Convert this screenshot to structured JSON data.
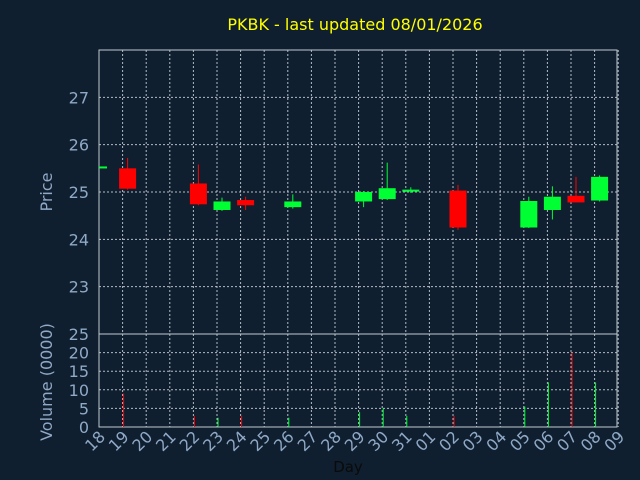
{
  "chart_data": [
    {
      "type": "candlestick",
      "title": "PKBK - last updated 08/01/2026",
      "ylabel": "Price",
      "xlabel": "",
      "ylim": [
        22,
        28
      ],
      "yticks": [
        23,
        24,
        25,
        26,
        27
      ],
      "grid": true,
      "colors": {
        "up": "#00ff33",
        "down": "#ff0000"
      },
      "candles": [
        {
          "day": "18",
          "open": 25.52,
          "high": 25.54,
          "low": 25.51,
          "close": 25.54
        },
        {
          "day": "19",
          "open": 25.5,
          "high": 25.72,
          "low": 25.05,
          "close": 25.07
        },
        {
          "day": "22",
          "open": 25.18,
          "high": 25.58,
          "low": 24.72,
          "close": 24.74
        },
        {
          "day": "23",
          "open": 24.62,
          "high": 24.88,
          "low": 24.6,
          "close": 24.8
        },
        {
          "day": "24",
          "open": 24.83,
          "high": 24.9,
          "low": 24.62,
          "close": 24.72
        },
        {
          "day": "26",
          "open": 24.68,
          "high": 24.95,
          "low": 24.65,
          "close": 24.8
        },
        {
          "day": "29",
          "open": 24.8,
          "high": 25.02,
          "low": 24.68,
          "close": 25.0
        },
        {
          "day": "30",
          "open": 24.85,
          "high": 25.62,
          "low": 24.83,
          "close": 25.08
        },
        {
          "day": "31",
          "open": 25.01,
          "high": 25.1,
          "low": 24.98,
          "close": 25.05
        },
        {
          "day": "02",
          "open": 25.03,
          "high": 25.15,
          "low": 24.2,
          "close": 24.25
        },
        {
          "day": "05",
          "open": 24.25,
          "high": 24.9,
          "low": 24.24,
          "close": 24.81
        },
        {
          "day": "06",
          "open": 24.62,
          "high": 25.12,
          "low": 24.42,
          "close": 24.9
        },
        {
          "day": "07",
          "open": 24.92,
          "high": 25.32,
          "low": 24.78,
          "close": 24.78
        },
        {
          "day": "08",
          "open": 24.82,
          "high": 25.35,
          "low": 24.8,
          "close": 25.32
        }
      ]
    },
    {
      "type": "bar",
      "ylabel": "Volume (0000)",
      "xlabel": "Day",
      "ylim": [
        0,
        25
      ],
      "yticks": [
        0,
        5,
        10,
        15,
        20,
        25
      ],
      "grid": true,
      "categories": [
        "18",
        "19",
        "20",
        "21",
        "22",
        "23",
        "24",
        "25",
        "26",
        "27",
        "28",
        "29",
        "30",
        "31",
        "01",
        "02",
        "03",
        "04",
        "05",
        "06",
        "07",
        "08",
        "09"
      ],
      "series": [
        {
          "values": [
            0,
            9,
            0,
            0,
            3,
            2.5,
            3,
            0,
            2.5,
            0,
            0,
            4,
            5,
            3,
            0,
            3,
            0,
            0,
            5.5,
            12,
            20,
            12,
            0
          ],
          "colors": [
            "up",
            "down",
            null,
            null,
            "down",
            "up",
            "down",
            null,
            "up",
            null,
            null,
            "up",
            "up",
            "up",
            null,
            "down",
            null,
            null,
            "up",
            "up",
            "down",
            "up",
            null
          ]
        }
      ]
    }
  ]
}
